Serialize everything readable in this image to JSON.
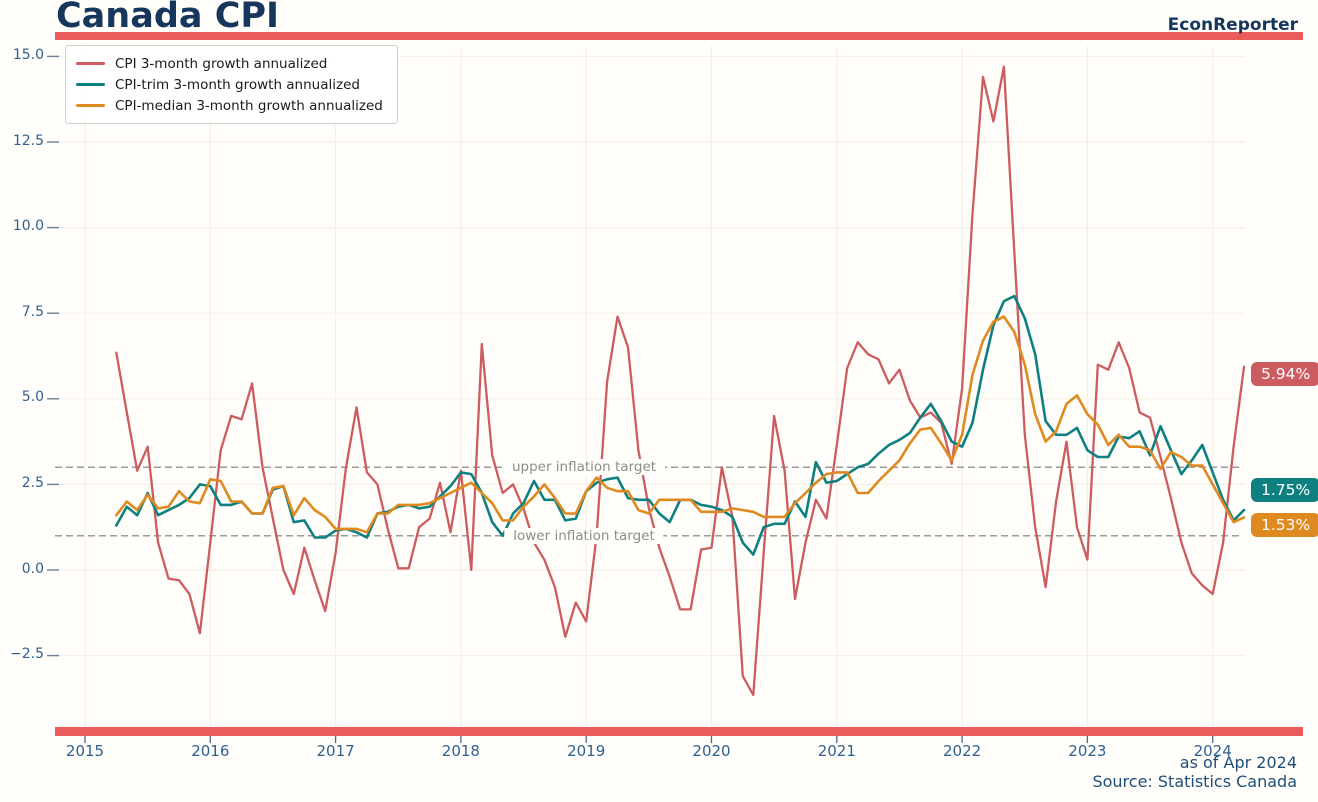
{
  "header": {
    "title": "Canada CPI",
    "brand": "EconReporter"
  },
  "footer": {
    "as_of": "as of Apr 2024",
    "source": "Source: Statistics Canada"
  },
  "colors": {
    "accent_bar": "#e85c5c",
    "cpi_line": "#cc5c60",
    "trim_line": "#0f8080",
    "median_line": "#df8a20",
    "navy_text": "#16365c",
    "tick_text": "#2e6190",
    "target_dash": "#9b9b9b",
    "grid": "#f6f0e3",
    "background": "#fffefa"
  },
  "chart_data": {
    "type": "line",
    "title": "Canada CPI",
    "xlabel": "",
    "ylabel": "",
    "grid": true,
    "legend_position": "upper-left",
    "ylim": [
      -4.5,
      15.4
    ],
    "yticks": [
      {
        "label": "15.0",
        "value": 15.0
      },
      {
        "label": "12.5",
        "value": 12.5
      },
      {
        "label": "10.0",
        "value": 10.0
      },
      {
        "label": "7.5",
        "value": 7.5
      },
      {
        "label": "5.0",
        "value": 5.0
      },
      {
        "label": "2.5",
        "value": 2.5
      },
      {
        "label": "0.0",
        "value": 0.0
      },
      {
        "label": "−2.5",
        "value": -2.5
      }
    ],
    "xticks": [
      2015,
      2016,
      2017,
      2018,
      2019,
      2020,
      2021,
      2022,
      2023,
      2024
    ],
    "annotations": {
      "upper": {
        "label": "upper inflation target",
        "value": 3.0
      },
      "lower": {
        "label": "lower inflation target",
        "value": 1.0
      }
    },
    "x_months": [
      "2015-04",
      "2015-05",
      "2015-06",
      "2015-07",
      "2015-08",
      "2015-09",
      "2015-10",
      "2015-11",
      "2015-12",
      "2016-01",
      "2016-02",
      "2016-03",
      "2016-04",
      "2016-05",
      "2016-06",
      "2016-07",
      "2016-08",
      "2016-09",
      "2016-10",
      "2016-11",
      "2016-12",
      "2017-01",
      "2017-02",
      "2017-03",
      "2017-04",
      "2017-05",
      "2017-06",
      "2017-07",
      "2017-08",
      "2017-09",
      "2017-10",
      "2017-11",
      "2017-12",
      "2018-01",
      "2018-02",
      "2018-03",
      "2018-04",
      "2018-05",
      "2018-06",
      "2018-07",
      "2018-08",
      "2018-09",
      "2018-10",
      "2018-11",
      "2018-12",
      "2019-01",
      "2019-02",
      "2019-03",
      "2019-04",
      "2019-05",
      "2019-06",
      "2019-07",
      "2019-08",
      "2019-09",
      "2019-10",
      "2019-11",
      "2019-12",
      "2020-01",
      "2020-02",
      "2020-03",
      "2020-04",
      "2020-05",
      "2020-06",
      "2020-07",
      "2020-08",
      "2020-09",
      "2020-10",
      "2020-11",
      "2020-12",
      "2021-01",
      "2021-02",
      "2021-03",
      "2021-04",
      "2021-05",
      "2021-06",
      "2021-07",
      "2021-08",
      "2021-09",
      "2021-10",
      "2021-11",
      "2021-12",
      "2022-01",
      "2022-02",
      "2022-03",
      "2022-04",
      "2022-05",
      "2022-06",
      "2022-07",
      "2022-08",
      "2022-09",
      "2022-10",
      "2022-11",
      "2022-12",
      "2023-01",
      "2023-02",
      "2023-03",
      "2023-04",
      "2023-05",
      "2023-06",
      "2023-07",
      "2023-08",
      "2023-09",
      "2023-10",
      "2023-11",
      "2023-12",
      "2024-01",
      "2024-02",
      "2024-03",
      "2024-04"
    ],
    "series": [
      {
        "name": "CPI 3-month growth annualized",
        "color_key": "cpi_line",
        "end_label": "5.94%",
        "end_value": 5.94,
        "values": [
          6.35,
          4.6,
          2.9,
          3.6,
          0.8,
          -0.25,
          -0.3,
          -0.7,
          -1.85,
          0.8,
          3.5,
          4.5,
          4.4,
          5.45,
          3.0,
          1.5,
          0.0,
          -0.7,
          0.65,
          -0.3,
          -1.2,
          0.5,
          3.0,
          4.75,
          2.85,
          2.5,
          1.2,
          0.05,
          0.05,
          1.25,
          1.5,
          2.55,
          1.1,
          2.9,
          0.0,
          6.6,
          3.35,
          2.25,
          2.5,
          1.8,
          0.8,
          0.3,
          -0.5,
          -1.95,
          -0.95,
          -1.5,
          1.0,
          5.5,
          7.4,
          6.5,
          3.5,
          1.8,
          0.65,
          -0.2,
          -1.15,
          -1.15,
          0.6,
          0.65,
          3.0,
          1.55,
          -3.1,
          -3.65,
          0.5,
          4.5,
          2.9,
          -0.85,
          0.8,
          2.05,
          1.5,
          3.65,
          5.9,
          6.65,
          6.3,
          6.15,
          5.45,
          5.85,
          4.95,
          4.45,
          4.6,
          4.3,
          3.1,
          5.3,
          10.4,
          14.4,
          13.1,
          14.7,
          9.3,
          3.95,
          1.25,
          -0.5,
          2.0,
          3.75,
          1.25,
          0.3,
          6.0,
          5.85,
          6.65,
          5.9,
          4.6,
          4.45,
          3.3,
          2.1,
          0.8,
          -0.1,
          -0.45,
          -0.7,
          0.8,
          3.6,
          5.94
        ]
      },
      {
        "name": "CPI-trim 3-month growth annualized",
        "color_key": "trim_line",
        "end_label": "1.75%",
        "end_value": 1.75,
        "values": [
          1.3,
          1.85,
          1.6,
          2.25,
          1.6,
          1.75,
          1.9,
          2.1,
          2.5,
          2.45,
          1.9,
          1.9,
          2.0,
          1.65,
          1.65,
          2.35,
          2.45,
          1.4,
          1.45,
          0.95,
          0.95,
          1.15,
          1.2,
          1.1,
          0.95,
          1.65,
          1.7,
          1.85,
          1.9,
          1.8,
          1.85,
          2.15,
          2.45,
          2.85,
          2.8,
          2.25,
          1.4,
          1.0,
          1.65,
          1.95,
          2.6,
          2.05,
          2.05,
          1.45,
          1.5,
          2.3,
          2.55,
          2.65,
          2.7,
          2.1,
          2.05,
          2.05,
          1.65,
          1.4,
          2.05,
          2.05,
          1.9,
          1.85,
          1.75,
          1.55,
          0.8,
          0.45,
          1.25,
          1.35,
          1.35,
          2.0,
          1.55,
          3.15,
          2.55,
          2.6,
          2.8,
          3.0,
          3.1,
          3.4,
          3.65,
          3.8,
          4.0,
          4.45,
          4.85,
          4.35,
          3.75,
          3.6,
          4.3,
          5.85,
          7.15,
          7.85,
          8.0,
          7.35,
          6.3,
          4.35,
          3.95,
          3.95,
          4.15,
          3.5,
          3.3,
          3.3,
          3.9,
          3.85,
          4.05,
          3.35,
          4.2,
          3.5,
          2.8,
          3.2,
          3.65,
          2.85,
          2.05,
          1.45,
          1.75
        ]
      },
      {
        "name": "CPI-median 3-month growth annualized",
        "color_key": "median_line",
        "end_label": "1.53%",
        "end_value": 1.53,
        "values": [
          1.6,
          2.0,
          1.75,
          2.2,
          1.8,
          1.85,
          2.3,
          2.0,
          1.95,
          2.65,
          2.6,
          2.0,
          2.0,
          1.65,
          1.65,
          2.4,
          2.45,
          1.6,
          2.1,
          1.75,
          1.55,
          1.2,
          1.2,
          1.2,
          1.1,
          1.65,
          1.65,
          1.9,
          1.9,
          1.9,
          1.95,
          2.1,
          2.25,
          2.4,
          2.55,
          2.25,
          1.95,
          1.45,
          1.45,
          1.85,
          2.15,
          2.5,
          2.1,
          1.65,
          1.65,
          2.3,
          2.7,
          2.4,
          2.3,
          2.3,
          1.75,
          1.65,
          2.05,
          2.05,
          2.05,
          2.05,
          1.7,
          1.7,
          1.7,
          1.8,
          1.75,
          1.7,
          1.55,
          1.55,
          1.55,
          1.95,
          2.25,
          2.55,
          2.8,
          2.85,
          2.85,
          2.25,
          2.25,
          2.6,
          2.9,
          3.2,
          3.7,
          4.1,
          4.15,
          3.7,
          3.2,
          3.95,
          5.7,
          6.7,
          7.25,
          7.4,
          6.95,
          6.0,
          4.55,
          3.75,
          4.05,
          4.85,
          5.1,
          4.55,
          4.25,
          3.65,
          3.95,
          3.6,
          3.6,
          3.5,
          2.95,
          3.45,
          3.3,
          3.05,
          3.05,
          2.5,
          1.95,
          1.4,
          1.53
        ]
      }
    ]
  }
}
